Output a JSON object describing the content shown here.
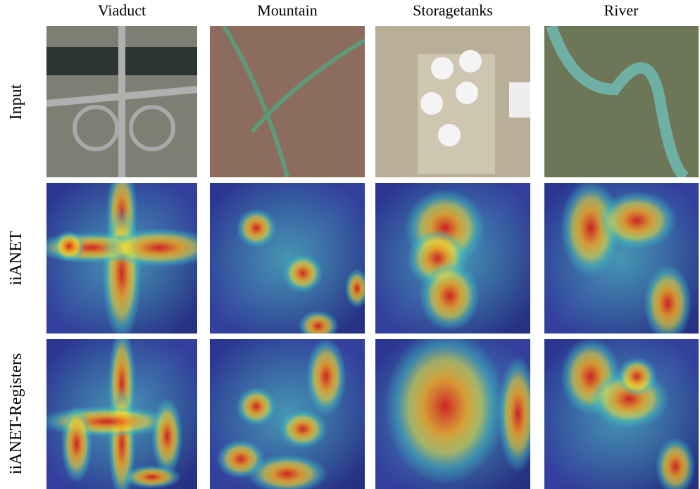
{
  "columns": [
    "Viaduct",
    "Mountain",
    "Storagetanks",
    "River"
  ],
  "rows": [
    "Input",
    "iiANET",
    "iiANET-Registers"
  ]
}
